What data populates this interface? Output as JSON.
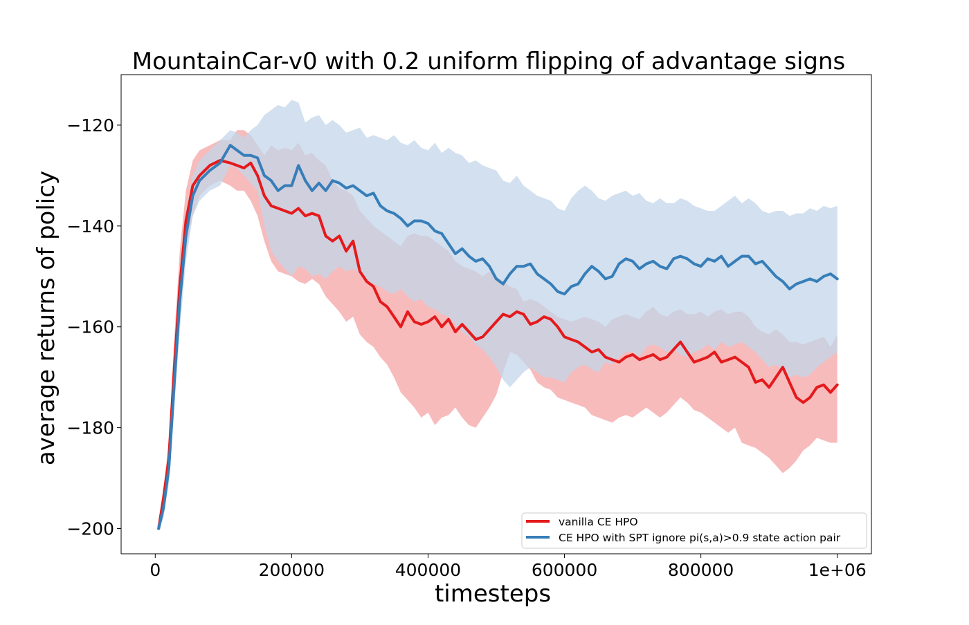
{
  "chart_data": {
    "type": "line",
    "title": "MountainCar-v0 with 0.2 uniform flipping of advantage signs",
    "xlabel": "timesteps",
    "ylabel": "average returns of policy",
    "xlim": [
      -50000,
      1050000
    ],
    "ylim": [
      -205,
      -110
    ],
    "xticks": [
      0,
      200000,
      400000,
      600000,
      800000,
      1000000
    ],
    "xtick_labels": [
      "0",
      "200000",
      "400000",
      "600000",
      "800000",
      "1e+06"
    ],
    "yticks": [
      -200,
      -180,
      -160,
      -140,
      -120
    ],
    "ytick_labels": [
      "−200",
      "−180",
      "−160",
      "−140",
      "−120"
    ],
    "grid": false,
    "legend_position": "bottom-right",
    "series": [
      {
        "name": "vanilla CE HPO",
        "color": "#e41a1c",
        "band_color": "#f4a4a6",
        "x": [
          5000,
          12000,
          20000,
          28000,
          36000,
          45000,
          55000,
          65000,
          80000,
          95000,
          110000,
          120000,
          130000,
          140000,
          150000,
          160000,
          170000,
          180000,
          190000,
          200000,
          210000,
          220000,
          230000,
          240000,
          250000,
          260000,
          270000,
          280000,
          290000,
          300000,
          310000,
          320000,
          330000,
          340000,
          350000,
          360000,
          370000,
          380000,
          390000,
          400000,
          410000,
          420000,
          430000,
          440000,
          450000,
          460000,
          470000,
          480000,
          490000,
          500000,
          510000,
          520000,
          530000,
          540000,
          550000,
          560000,
          570000,
          580000,
          590000,
          600000,
          610000,
          620000,
          630000,
          640000,
          650000,
          660000,
          670000,
          680000,
          690000,
          700000,
          710000,
          720000,
          730000,
          740000,
          750000,
          760000,
          770000,
          780000,
          790000,
          800000,
          810000,
          820000,
          830000,
          840000,
          850000,
          860000,
          870000,
          880000,
          890000,
          900000,
          910000,
          920000,
          930000,
          940000,
          950000,
          960000,
          970000,
          980000,
          990000,
          1000000
        ],
        "values": [
          -200,
          -194,
          -186,
          -168,
          -152,
          -139,
          -132,
          -130,
          -128,
          -127,
          -127.5,
          -128,
          -128.5,
          -127.5,
          -130,
          -134,
          -136,
          -136.5,
          -137,
          -137.5,
          -136.5,
          -138,
          -137.5,
          -138,
          -142,
          -143,
          -142,
          -145,
          -143,
          -149,
          -151,
          -152,
          -155,
          -156,
          -158,
          -160,
          -157,
          -159,
          -159.5,
          -159,
          -158,
          -160,
          -158.5,
          -161,
          -159.5,
          -161,
          -162.5,
          -162,
          -160.5,
          -159,
          -157.5,
          -158,
          -157,
          -157.5,
          -159.5,
          -159,
          -158,
          -158.5,
          -160,
          -162,
          -162.5,
          -163,
          -164,
          -165,
          -164.5,
          -166,
          -166.5,
          -167,
          -166,
          -165.5,
          -166.5,
          -166,
          -165.5,
          -166.5,
          -166,
          -164.5,
          -163,
          -165,
          -167,
          -166.5,
          -166,
          -165,
          -167,
          -166.5,
          -166,
          -167,
          -168,
          -171,
          -170.5,
          -172,
          -170,
          -168,
          -171,
          -174,
          -175,
          -174,
          -172,
          -171.5,
          -173,
          -171.5
        ],
        "upper": [
          -200,
          -193,
          -182,
          -162,
          -145,
          -133,
          -127,
          -125,
          -124,
          -123,
          -123,
          -121,
          -121,
          -122,
          -124,
          -126,
          -124,
          -125,
          -124.5,
          -125,
          -123.5,
          -126,
          -125.5,
          -127,
          -128,
          -131,
          -132.5,
          -133,
          -134,
          -137,
          -138.5,
          -140,
          -141,
          -142,
          -143,
          -144,
          -142,
          -141.5,
          -142,
          -142,
          -143,
          -144,
          -145,
          -147,
          -148,
          -148.5,
          -149,
          -150,
          -149,
          -150,
          -151,
          -152,
          -152.5,
          -155,
          -154.5,
          -155,
          -156,
          -157,
          -158,
          -158.5,
          -159,
          -158.5,
          -158,
          -158.5,
          -159,
          -160,
          -158.5,
          -158,
          -157.5,
          -158,
          -158.5,
          -157,
          -156,
          -157.5,
          -158,
          -157,
          -156.5,
          -157.5,
          -157.5,
          -157,
          -158,
          -157,
          -156.5,
          -157.5,
          -157,
          -157,
          -158,
          -160,
          -161,
          -161.5,
          -160.5,
          -161.5,
          -163,
          -163,
          -163.5,
          -163,
          -162.5,
          -162,
          -164,
          -161.5
        ],
        "lower": [
          -200,
          -197,
          -190,
          -174,
          -158,
          -145,
          -138,
          -134,
          -132,
          -131,
          -132,
          -133,
          -133,
          -135,
          -138,
          -143,
          -147,
          -149,
          -149.5,
          -150,
          -151,
          -151.5,
          -150.5,
          -151.5,
          -154,
          -155.5,
          -157,
          -159,
          -158,
          -161.5,
          -163,
          -164,
          -166,
          -167.5,
          -170,
          -173,
          -174.5,
          -176,
          -178,
          -177,
          -179.5,
          -178,
          -177.5,
          -176,
          -178,
          -179.5,
          -180,
          -178,
          -176,
          -173.5,
          -169,
          -165,
          -165.5,
          -167,
          -168.5,
          -171,
          -172,
          -172.5,
          -174,
          -174.5,
          -175,
          -175.5,
          -176,
          -177.5,
          -178,
          -178.5,
          -179,
          -178,
          -177.5,
          -178,
          -177,
          -176,
          -177,
          -178,
          -177,
          -175.5,
          -174,
          -175,
          -176.5,
          -177,
          -178,
          -179,
          -180,
          -181,
          -180,
          -183,
          -183.5,
          -184,
          -185,
          -186,
          -187.5,
          -189,
          -188,
          -186.5,
          -184.5,
          -183.5,
          -182,
          -182.5,
          -183,
          -183
        ]
      },
      {
        "name": "CE HPO with SPT ignore pi(s,a)>0.9 state action pair",
        "color": "#377eb8",
        "band_color": "#c3d6ea",
        "x": [
          5000,
          12000,
          20000,
          28000,
          36000,
          45000,
          55000,
          65000,
          80000,
          95000,
          110000,
          120000,
          130000,
          140000,
          150000,
          160000,
          170000,
          180000,
          190000,
          200000,
          210000,
          220000,
          230000,
          240000,
          250000,
          260000,
          270000,
          280000,
          290000,
          300000,
          310000,
          320000,
          330000,
          340000,
          350000,
          360000,
          370000,
          380000,
          390000,
          400000,
          410000,
          420000,
          430000,
          440000,
          450000,
          460000,
          470000,
          480000,
          490000,
          500000,
          510000,
          520000,
          530000,
          540000,
          550000,
          560000,
          570000,
          580000,
          590000,
          600000,
          610000,
          620000,
          630000,
          640000,
          650000,
          660000,
          670000,
          680000,
          690000,
          700000,
          710000,
          720000,
          730000,
          740000,
          750000,
          760000,
          770000,
          780000,
          790000,
          800000,
          810000,
          820000,
          830000,
          840000,
          850000,
          860000,
          870000,
          880000,
          890000,
          900000,
          910000,
          920000,
          930000,
          940000,
          950000,
          960000,
          970000,
          980000,
          990000,
          1000000
        ],
        "values": [
          -200,
          -196,
          -188,
          -171,
          -155,
          -142,
          -134,
          -131,
          -129,
          -127.5,
          -124,
          -125,
          -126,
          -126,
          -126.5,
          -130,
          -131,
          -133,
          -132,
          -132,
          -128,
          -131,
          -133,
          -131.5,
          -133,
          -131,
          -131.5,
          -132.5,
          -132,
          -133,
          -134,
          -133.5,
          -136,
          -137,
          -137.5,
          -138.5,
          -140,
          -139,
          -139,
          -139.5,
          -141,
          -141.5,
          -143.5,
          -145.5,
          -144.5,
          -146,
          -147,
          -146.5,
          -148,
          -150.5,
          -151.5,
          -149.5,
          -148,
          -148,
          -147.5,
          -149.5,
          -150.5,
          -151.5,
          -153,
          -153.5,
          -152,
          -151.5,
          -149.5,
          -148,
          -149,
          -150.5,
          -150,
          -147.5,
          -146.5,
          -147,
          -148.5,
          -147.5,
          -147,
          -148,
          -148.5,
          -146.5,
          -146,
          -146.5,
          -147.5,
          -148,
          -146.5,
          -147,
          -146,
          -148,
          -147,
          -146,
          -146,
          -147.5,
          -147,
          -148.5,
          -150,
          -151,
          -152.5,
          -151.5,
          -151,
          -150.5,
          -151,
          -150,
          -149.5,
          -150.5
        ],
        "upper": [
          -200,
          -195,
          -185,
          -166,
          -149,
          -137,
          -130,
          -127,
          -125,
          -123,
          -121,
          -121.5,
          -122.5,
          -121,
          -120,
          -118,
          -117,
          -116,
          -116.5,
          -115,
          -115.5,
          -119.5,
          -118.5,
          -118,
          -120,
          -119,
          -120,
          -121.5,
          -121,
          -120.5,
          -122.5,
          -122,
          -122.5,
          -123,
          -122,
          -123.5,
          -124,
          -123,
          -124.5,
          -125,
          -123.5,
          -125.5,
          -124.5,
          -125.5,
          -126,
          -127.5,
          -127,
          -128,
          -128.5,
          -129,
          -131,
          -131.5,
          -130,
          -132,
          -133,
          -134,
          -134.5,
          -135,
          -136.5,
          -137,
          -134.5,
          -133,
          -132,
          -133,
          -134.5,
          -135,
          -134,
          -133.5,
          -133,
          -134,
          -133.5,
          -135,
          -135.5,
          -134.5,
          -135.5,
          -135.5,
          -134.5,
          -135,
          -136,
          -136.5,
          -137,
          -137,
          -136,
          -135,
          -134,
          -135.5,
          -134.5,
          -135.5,
          -137,
          -137.5,
          -137,
          -137,
          -138,
          -137.5,
          -137.5,
          -136.5,
          -137,
          -136,
          -136.5,
          -136
        ],
        "lower": [
          -200,
          -198,
          -191,
          -176,
          -161,
          -147,
          -138,
          -135,
          -133,
          -132,
          -128,
          -128.5,
          -130,
          -131.5,
          -133,
          -140,
          -145,
          -147,
          -148.5,
          -150,
          -148,
          -148.5,
          -150,
          -149.5,
          -150.5,
          -149,
          -148,
          -149,
          -148.5,
          -149.5,
          -151,
          -151.5,
          -152,
          -153,
          -153.5,
          -152.5,
          -154,
          -155,
          -154.5,
          -156,
          -156.5,
          -157.5,
          -158,
          -159.5,
          -161,
          -162,
          -163.5,
          -164.5,
          -166,
          -168,
          -170.5,
          -172,
          -170.5,
          -169,
          -168,
          -169,
          -170,
          -170,
          -170.5,
          -171,
          -169,
          -168,
          -167.5,
          -168.5,
          -169,
          -167,
          -167.5,
          -166,
          -165,
          -165,
          -166,
          -164,
          -163.5,
          -164,
          -165,
          -164.5,
          -165.5,
          -166,
          -165,
          -164.5,
          -163.5,
          -164.5,
          -163,
          -164,
          -163.5,
          -163,
          -164,
          -165,
          -166.5,
          -168,
          -167.5,
          -168.5,
          -170,
          -169.5,
          -170,
          -169.5,
          -168,
          -167,
          -166,
          -165
        ]
      }
    ]
  }
}
